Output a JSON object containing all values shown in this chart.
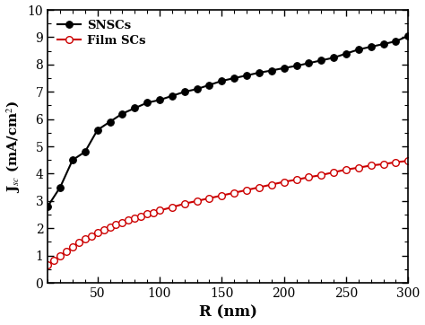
{
  "title": "",
  "xlabel": "R (nm)",
  "ylabel": "J$_{sc}$ (mA/cm$^{2}$)",
  "xlim": [
    10,
    300
  ],
  "ylim": [
    0,
    10
  ],
  "yticks": [
    0,
    1,
    2,
    3,
    4,
    5,
    6,
    7,
    8,
    9,
    10
  ],
  "xticks": [
    50,
    100,
    150,
    200,
    250,
    300
  ],
  "legend_labels": [
    "SNSCs",
    "Film SCs"
  ],
  "snsc_color": "#000000",
  "film_color": "#cc0000",
  "background_color": "#ffffff",
  "snsc_x": [
    10,
    20,
    30,
    40,
    50,
    60,
    70,
    80,
    90,
    100,
    110,
    120,
    130,
    140,
    150,
    160,
    170,
    180,
    190,
    200,
    210,
    220,
    230,
    240,
    250,
    260,
    270,
    280,
    290,
    300
  ],
  "snsc_y": [
    2.8,
    3.5,
    4.5,
    4.8,
    5.6,
    5.9,
    6.2,
    6.4,
    6.6,
    6.7,
    6.85,
    7.0,
    7.1,
    7.25,
    7.4,
    7.5,
    7.6,
    7.7,
    7.78,
    7.87,
    7.95,
    8.05,
    8.15,
    8.25,
    8.4,
    8.55,
    8.65,
    8.75,
    8.85,
    9.05
  ],
  "film_x": [
    10,
    15,
    20,
    25,
    30,
    35,
    40,
    45,
    50,
    55,
    60,
    65,
    70,
    75,
    80,
    85,
    90,
    95,
    100,
    110,
    120,
    130,
    140,
    150,
    160,
    170,
    180,
    190,
    200,
    210,
    220,
    230,
    240,
    250,
    260,
    270,
    280,
    290,
    300
  ],
  "film_y": [
    0.65,
    0.82,
    1.0,
    1.15,
    1.32,
    1.48,
    1.6,
    1.72,
    1.85,
    1.95,
    2.05,
    2.14,
    2.22,
    2.3,
    2.38,
    2.45,
    2.52,
    2.58,
    2.65,
    2.77,
    2.9,
    3.0,
    3.1,
    3.2,
    3.3,
    3.4,
    3.5,
    3.6,
    3.7,
    3.78,
    3.87,
    3.95,
    4.05,
    4.15,
    4.22,
    4.3,
    4.35,
    4.42,
    4.47
  ],
  "figsize": [
    4.74,
    3.62
  ],
  "dpi": 100,
  "linewidth": 1.5,
  "markersize": 5.5,
  "tick_labelsize": 10,
  "xlabel_fontsize": 12,
  "ylabel_fontsize": 11,
  "legend_fontsize": 9.5
}
